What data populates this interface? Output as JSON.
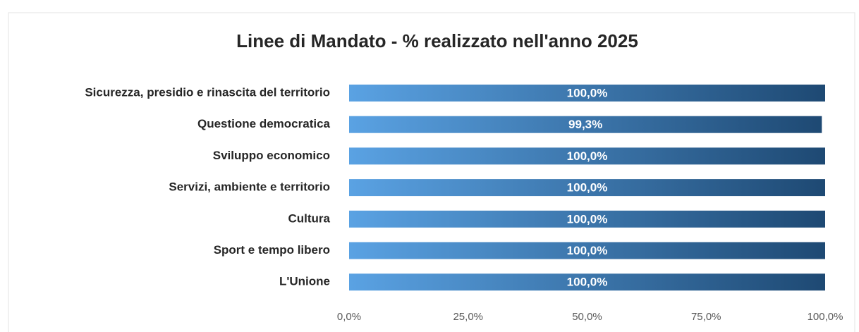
{
  "chart_data": {
    "type": "bar",
    "orientation": "horizontal",
    "title": "Linee di Mandato - % realizzato nell'anno 2025",
    "categories": [
      "Sicurezza, presidio e rinascita del territorio",
      "Questione democratica",
      "Sviluppo economico",
      "Servizi, ambiente e territorio",
      "Cultura",
      "Sport e tempo libero",
      "L'Unione"
    ],
    "values": [
      100,
      99.3,
      100,
      100,
      100,
      100,
      100
    ],
    "value_labels": [
      "100,0%",
      "99,3%",
      "100,0%",
      "100,0%",
      "100,0%",
      "100,0%",
      "100,0%"
    ],
    "gradient": [
      "#5aa2e3",
      "#1e4973"
    ],
    "xlim": [
      0,
      100
    ],
    "xticks": [
      {
        "value": 0,
        "label": "0,0%"
      },
      {
        "value": 25,
        "label": "25,0%"
      },
      {
        "value": 50,
        "label": "50,0%"
      },
      {
        "value": 75,
        "label": "75,0%"
      },
      {
        "value": 100,
        "label": "100,0%"
      }
    ],
    "grid": false
  }
}
